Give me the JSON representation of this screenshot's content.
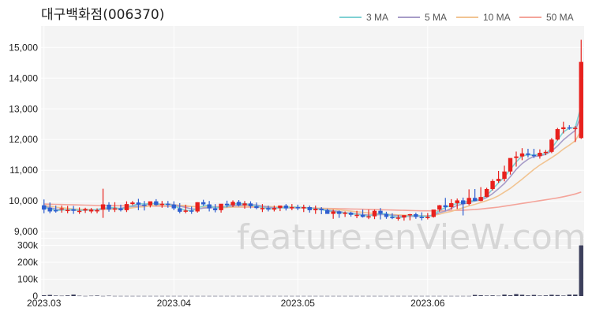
{
  "chart_data": {
    "type": "candlestick",
    "title": "대구백화점(006370)",
    "watermark": "feature.enVieW.com",
    "colors": {
      "up": "#e8201c",
      "down": "#2f5fd0",
      "ma3": "#7fd1d3",
      "ma5": "#a79cc8",
      "ma10": "#f1c492",
      "ma50": "#f4a49a",
      "volume": "#3c3f5c",
      "panel_bg": "#f4f4f4",
      "grid": "#ffffff"
    },
    "legend": [
      {
        "label": "3 MA",
        "color": "#7fd1d3"
      },
      {
        "label": "5 MA",
        "color": "#a79cc8"
      },
      {
        "label": "10 MA",
        "color": "#f1c492"
      },
      {
        "label": "50 MA",
        "color": "#f4a49a"
      }
    ],
    "price_axis": {
      "ylim": [
        8800,
        15700
      ],
      "ticks": [
        9000,
        10000,
        11000,
        12000,
        13000,
        14000,
        15000
      ],
      "tick_labels": [
        "9,000",
        "10,000",
        "11,000",
        "12,000",
        "13,000",
        "14,000",
        "15,000"
      ]
    },
    "volume_axis": {
      "ylim": [
        0,
        340000
      ],
      "ticks": [
        0,
        100000,
        200000,
        300000
      ],
      "tick_labels": [
        "0",
        "100k",
        "200k",
        "300k"
      ]
    },
    "x_axis": {
      "tick_labels": [
        "2023.03",
        "2023.04",
        "2023.05",
        "2023.06"
      ],
      "tick_indices": [
        0,
        22,
        43,
        65
      ]
    },
    "series": {
      "open": [
        9860,
        9780,
        9700,
        9760,
        9690,
        9730,
        9660,
        9690,
        9660,
        9700,
        9720,
        9880,
        9720,
        9760,
        9700,
        9900,
        9950,
        9880,
        9860,
        9990,
        9870,
        9910,
        9880,
        9760,
        9650,
        9690,
        9660,
        9960,
        9890,
        9760,
        9700,
        9910,
        9860,
        9970,
        9860,
        9920,
        9830,
        9770,
        9770,
        9720,
        9770,
        9850,
        9760,
        9800,
        9760,
        9800,
        9700,
        9750,
        9700,
        9580,
        9660,
        9580,
        9620,
        9550,
        9550,
        9480,
        9500,
        9680,
        9580,
        9480,
        9440,
        9460,
        9540,
        9570,
        9480,
        9470,
        9480,
        9720,
        9860,
        9800,
        9930,
        10020,
        9900,
        10100,
        10000,
        10130,
        10390,
        10650,
        10720,
        10960,
        11400,
        11450,
        11550,
        11500,
        11460,
        11570,
        11600,
        12000,
        12340,
        12400,
        12380,
        12050
      ],
      "high": [
        10050,
        9950,
        9850,
        9850,
        9840,
        9840,
        9790,
        9780,
        9770,
        9760,
        10400,
        9960,
        9960,
        9880,
        9990,
        10000,
        10070,
        10000,
        9960,
        10060,
        10000,
        10000,
        9990,
        9930,
        9880,
        9820,
        9960,
        10040,
        10000,
        9900,
        9900,
        10010,
        10020,
        10030,
        10000,
        9990,
        9950,
        9900,
        9850,
        9850,
        9850,
        9900,
        9900,
        9880,
        9880,
        9850,
        9850,
        9800,
        9750,
        9720,
        9690,
        9660,
        9650,
        9680,
        9720,
        9720,
        9720,
        9770,
        9650,
        9600,
        9540,
        9530,
        9580,
        9620,
        9630,
        9610,
        9680,
        9870,
        10100,
        10060,
        10080,
        10110,
        10380,
        10390,
        10450,
        10430,
        10710,
        10980,
        11150,
        11370,
        11610,
        11720,
        11700,
        11700,
        11680,
        11660,
        12050,
        12380,
        12580,
        12470,
        12440,
        15250
      ],
      "low": [
        9600,
        9600,
        9620,
        9620,
        9600,
        9580,
        9580,
        9610,
        9600,
        9600,
        9450,
        9650,
        9640,
        9660,
        9640,
        9860,
        9700,
        9690,
        9790,
        9840,
        9780,
        9780,
        9700,
        9600,
        9600,
        9580,
        9620,
        9840,
        9660,
        9630,
        9620,
        9790,
        9800,
        9820,
        9750,
        9760,
        9730,
        9640,
        9660,
        9660,
        9670,
        9690,
        9700,
        9700,
        9640,
        9620,
        9580,
        9570,
        9580,
        9420,
        9450,
        9480,
        9490,
        9440,
        9460,
        9410,
        9410,
        9400,
        9420,
        9410,
        9360,
        9360,
        9370,
        9420,
        9370,
        9400,
        9460,
        9650,
        9690,
        9720,
        9740,
        9530,
        9860,
        9990,
        9990,
        10120,
        10340,
        10590,
        10640,
        10860,
        11120,
        11330,
        11420,
        11400,
        11380,
        11490,
        11560,
        11970,
        12200,
        12320,
        11920,
        12020
      ],
      "close": [
        9720,
        9660,
        9690,
        9760,
        9710,
        9680,
        9680,
        9740,
        9720,
        9700,
        9890,
        9720,
        9760,
        9700,
        9900,
        9950,
        9880,
        9860,
        9990,
        9870,
        9910,
        9880,
        9760,
        9650,
        9690,
        9660,
        9960,
        9890,
        9760,
        9700,
        9910,
        9860,
        9970,
        9860,
        9920,
        9830,
        9770,
        9770,
        9720,
        9770,
        9850,
        9760,
        9800,
        9760,
        9800,
        9700,
        9750,
        9700,
        9580,
        9660,
        9580,
        9620,
        9550,
        9550,
        9480,
        9500,
        9680,
        9580,
        9480,
        9440,
        9460,
        9540,
        9570,
        9480,
        9470,
        9480,
        9720,
        9860,
        9800,
        9930,
        10020,
        9900,
        10100,
        10000,
        10130,
        10390,
        10650,
        10720,
        10960,
        11400,
        11450,
        11550,
        11500,
        11460,
        11570,
        11600,
        12000,
        12340,
        12400,
        12380,
        12380,
        14530
      ],
      "volume": [
        5000,
        7000,
        3000,
        2000,
        4000,
        9000,
        2000,
        1000,
        2000,
        3000,
        1000,
        2000,
        1000,
        1000,
        1000,
        1000,
        1000,
        1000,
        1000,
        1000,
        1000,
        1000,
        1000,
        1000,
        1000,
        1000,
        1000,
        1000,
        1000,
        1000,
        1000,
        1000,
        1000,
        1000,
        1000,
        1000,
        1000,
        1000,
        1000,
        1000,
        1000,
        1000,
        1000,
        1000,
        1000,
        1000,
        1000,
        1000,
        1000,
        1000,
        1000,
        1000,
        1000,
        1000,
        1000,
        1000,
        1000,
        1000,
        1000,
        1000,
        1000,
        1000,
        1000,
        1000,
        1000,
        1000,
        1000,
        1000,
        1000,
        1000,
        1000,
        1000,
        1000,
        7000,
        5000,
        3000,
        4000,
        2000,
        9000,
        5000,
        12000,
        8000,
        4000,
        7000,
        3000,
        4000,
        8000,
        6000,
        3000,
        9000,
        9000,
        300000
      ],
      "ma3": [
        9800,
        9740,
        9690,
        9700,
        9720,
        9720,
        9700,
        9700,
        9710,
        9720,
        9770,
        9770,
        9790,
        9730,
        9790,
        9850,
        9910,
        9900,
        9910,
        9910,
        9890,
        9890,
        9850,
        9760,
        9700,
        9670,
        9770,
        9840,
        9870,
        9780,
        9790,
        9820,
        9910,
        9900,
        9920,
        9870,
        9840,
        9790,
        9750,
        9750,
        9780,
        9790,
        9800,
        9790,
        9790,
        9750,
        9750,
        9720,
        9680,
        9650,
        9610,
        9620,
        9580,
        9570,
        9530,
        9510,
        9560,
        9590,
        9580,
        9500,
        9460,
        9480,
        9520,
        9530,
        9510,
        9480,
        9560,
        9690,
        9790,
        9860,
        9920,
        9950,
        10010,
        10000,
        10080,
        10170,
        10390,
        10590,
        10780,
        11030,
        11270,
        11470,
        11500,
        11500,
        11510,
        11540,
        11720,
        11980,
        12250,
        12370,
        12390,
        13100
      ],
      "ma5": [
        9820,
        9780,
        9740,
        9720,
        9710,
        9700,
        9700,
        9700,
        9710,
        9700,
        9750,
        9760,
        9760,
        9760,
        9800,
        9820,
        9840,
        9860,
        9920,
        9910,
        9890,
        9900,
        9880,
        9830,
        9790,
        9740,
        9740,
        9770,
        9780,
        9790,
        9800,
        9820,
        9840,
        9860,
        9870,
        9880,
        9870,
        9830,
        9800,
        9780,
        9780,
        9780,
        9780,
        9790,
        9790,
        9770,
        9760,
        9740,
        9710,
        9680,
        9660,
        9620,
        9600,
        9580,
        9560,
        9540,
        9550,
        9560,
        9560,
        9540,
        9520,
        9500,
        9500,
        9500,
        9500,
        9510,
        9540,
        9620,
        9670,
        9760,
        9860,
        9900,
        9950,
        10000,
        10030,
        10110,
        10240,
        10400,
        10570,
        10790,
        11030,
        11220,
        11360,
        11450,
        11470,
        11520,
        11630,
        11790,
        11990,
        12150,
        12300,
        12800
      ],
      "ma10": [
        9850,
        9830,
        9800,
        9780,
        9760,
        9740,
        9730,
        9720,
        9720,
        9710,
        9730,
        9730,
        9740,
        9740,
        9750,
        9780,
        9800,
        9810,
        9840,
        9860,
        9880,
        9880,
        9880,
        9860,
        9850,
        9820,
        9810,
        9810,
        9800,
        9790,
        9780,
        9790,
        9800,
        9810,
        9820,
        9830,
        9830,
        9830,
        9820,
        9810,
        9810,
        9810,
        9810,
        9800,
        9790,
        9780,
        9770,
        9760,
        9750,
        9730,
        9710,
        9690,
        9670,
        9650,
        9630,
        9610,
        9590,
        9580,
        9570,
        9560,
        9550,
        9540,
        9530,
        9530,
        9520,
        9520,
        9530,
        9570,
        9620,
        9660,
        9720,
        9780,
        9840,
        9890,
        9950,
        10010,
        10080,
        10170,
        10290,
        10410,
        10560,
        10710,
        10870,
        11030,
        11170,
        11290,
        11410,
        11540,
        11690,
        11820,
        11960,
        12300
      ],
      "ma50": [
        9900,
        9895,
        9890,
        9885,
        9880,
        9875,
        9870,
        9865,
        9860,
        9855,
        9850,
        9848,
        9846,
        9844,
        9842,
        9840,
        9838,
        9836,
        9834,
        9832,
        9830,
        9828,
        9826,
        9824,
        9822,
        9820,
        9818,
        9816,
        9814,
        9812,
        9810,
        9808,
        9806,
        9804,
        9802,
        9800,
        9798,
        9796,
        9794,
        9792,
        9790,
        9786,
        9782,
        9778,
        9774,
        9770,
        9766,
        9762,
        9758,
        9754,
        9750,
        9745,
        9740,
        9735,
        9730,
        9725,
        9720,
        9715,
        9710,
        9705,
        9700,
        9695,
        9690,
        9685,
        9680,
        9680,
        9680,
        9680,
        9685,
        9690,
        9695,
        9700,
        9710,
        9720,
        9740,
        9760,
        9780,
        9800,
        9830,
        9860,
        9890,
        9920,
        9950,
        9980,
        10010,
        10040,
        10070,
        10100,
        10140,
        10180,
        10230,
        10290
      ]
    }
  }
}
